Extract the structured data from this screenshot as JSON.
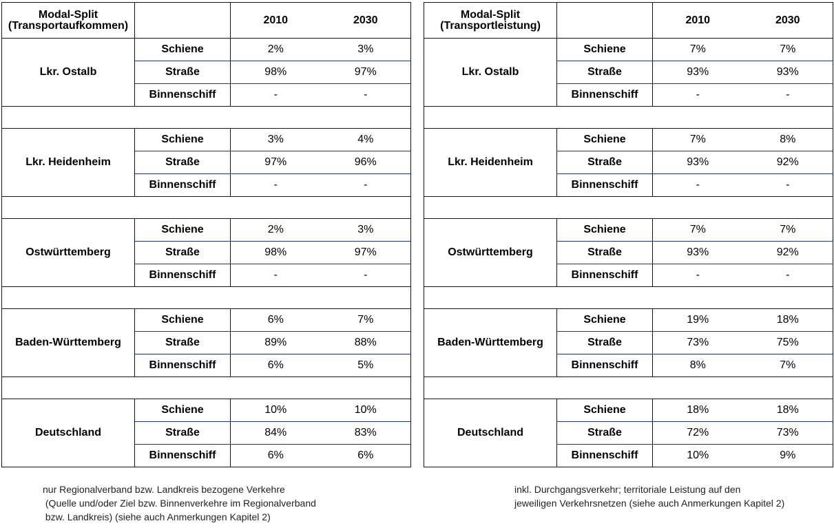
{
  "tables": [
    {
      "header": "Modal-Split\n(Transportaufkommen)",
      "header_line1": "Modal-Split",
      "header_line2": "(Transportaufkommen)",
      "years": [
        "2010",
        "2030"
      ],
      "regions": [
        {
          "name": "Lkr. Ostalb",
          "rows": [
            {
              "mode": "Schiene",
              "v2010": "2%",
              "v2030": "3%"
            },
            {
              "mode": "Straße",
              "v2010": "98%",
              "v2030": "97%"
            },
            {
              "mode": "Binnenschiff",
              "v2010": "-",
              "v2030": "-"
            }
          ]
        },
        {
          "name": "Lkr. Heidenheim",
          "rows": [
            {
              "mode": "Schiene",
              "v2010": "3%",
              "v2030": "4%"
            },
            {
              "mode": "Straße",
              "v2010": "97%",
              "v2030": "96%"
            },
            {
              "mode": "Binnenschiff",
              "v2010": "-",
              "v2030": "-"
            }
          ]
        },
        {
          "name": "Ostwürttemberg",
          "rows": [
            {
              "mode": "Schiene",
              "v2010": "2%",
              "v2030": "3%"
            },
            {
              "mode": "Straße",
              "v2010": "98%",
              "v2030": "97%"
            },
            {
              "mode": "Binnenschiff",
              "v2010": "-",
              "v2030": "-"
            }
          ]
        },
        {
          "name": "Baden-Württemberg",
          "rows": [
            {
              "mode": "Schiene",
              "v2010": "6%",
              "v2030": "7%"
            },
            {
              "mode": "Straße",
              "v2010": "89%",
              "v2030": "88%"
            },
            {
              "mode": "Binnenschiff",
              "v2010": "6%",
              "v2030": "5%"
            }
          ]
        },
        {
          "name": "Deutschland",
          "rows": [
            {
              "mode": "Schiene",
              "v2010": "10%",
              "v2030": "10%"
            },
            {
              "mode": "Straße",
              "v2010": "84%",
              "v2030": "83%"
            },
            {
              "mode": "Binnenschiff",
              "v2010": "6%",
              "v2030": "6%"
            }
          ]
        }
      ],
      "note": "nur Regionalverband bzw. Landkreis bezogene Verkehre\n (Quelle und/oder Ziel bzw. Binnenverkehre im Regionalverband\n bzw. Landkreis) (siehe auch Anmerkungen Kapitel 2)"
    },
    {
      "header": "Modal-Split\n(Transportleistung)",
      "header_line1": "Modal-Split",
      "header_line2": "(Transportleistung)",
      "years": [
        "2010",
        "2030"
      ],
      "regions": [
        {
          "name": "Lkr. Ostalb",
          "rows": [
            {
              "mode": "Schiene",
              "v2010": "7%",
              "v2030": "7%"
            },
            {
              "mode": "Straße",
              "v2010": "93%",
              "v2030": "93%"
            },
            {
              "mode": "Binnenschiff",
              "v2010": "-",
              "v2030": "-"
            }
          ]
        },
        {
          "name": "Lkr. Heidenheim",
          "rows": [
            {
              "mode": "Schiene",
              "v2010": "7%",
              "v2030": "8%"
            },
            {
              "mode": "Straße",
              "v2010": "93%",
              "v2030": "92%"
            },
            {
              "mode": "Binnenschiff",
              "v2010": "-",
              "v2030": "-"
            }
          ]
        },
        {
          "name": "Ostwürttemberg",
          "rows": [
            {
              "mode": "Schiene",
              "v2010": "7%",
              "v2030": "7%"
            },
            {
              "mode": "Straße",
              "v2010": "93%",
              "v2030": "92%"
            },
            {
              "mode": "Binnenschiff",
              "v2010": "-",
              "v2030": "-"
            }
          ]
        },
        {
          "name": "Baden-Württemberg",
          "rows": [
            {
              "mode": "Schiene",
              "v2010": "19%",
              "v2030": "18%"
            },
            {
              "mode": "Straße",
              "v2010": "73%",
              "v2030": "75%"
            },
            {
              "mode": "Binnenschiff",
              "v2010": "8%",
              "v2030": "7%"
            }
          ]
        },
        {
          "name": "Deutschland",
          "rows": [
            {
              "mode": "Schiene",
              "v2010": "18%",
              "v2030": "18%"
            },
            {
              "mode": "Straße",
              "v2010": "72%",
              "v2030": "73%"
            },
            {
              "mode": "Binnenschiff",
              "v2010": "10%",
              "v2030": "9%"
            }
          ]
        }
      ],
      "note": "inkl. Durchgangsverkehr; territoriale Leistung auf den\njeweiligen Verkehrsnetzen (siehe auch Anmerkungen Kapitel 2)"
    }
  ]
}
